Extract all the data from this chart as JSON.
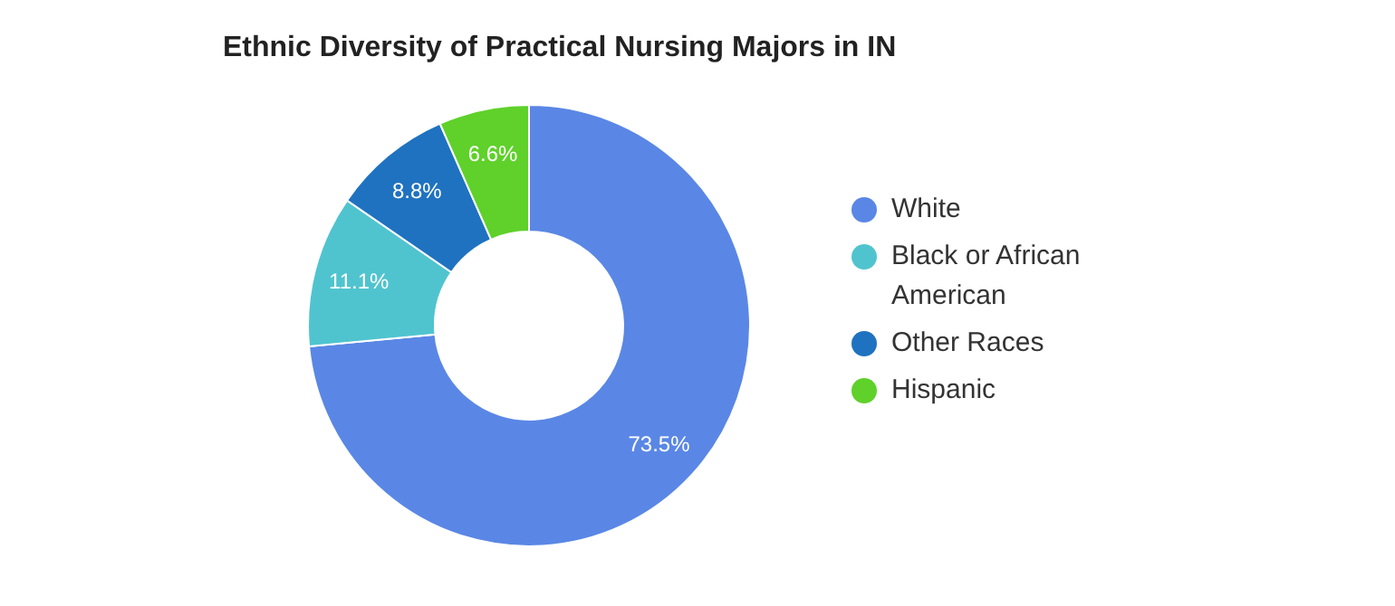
{
  "chart_data": {
    "type": "donut",
    "title": "Ethnic Diversity of Practical Nursing Majors in IN",
    "categories": [
      "White",
      "Black or African American",
      "Other Races",
      "Hispanic"
    ],
    "values": [
      73.5,
      11.1,
      8.8,
      6.6
    ],
    "colors": [
      "#5a87e5",
      "#4fc4cf",
      "#1f72c0",
      "#5fd12a"
    ],
    "value_labels": [
      "73.5%",
      "11.1%",
      "8.8%",
      "6.6%"
    ],
    "legend": "right"
  }
}
